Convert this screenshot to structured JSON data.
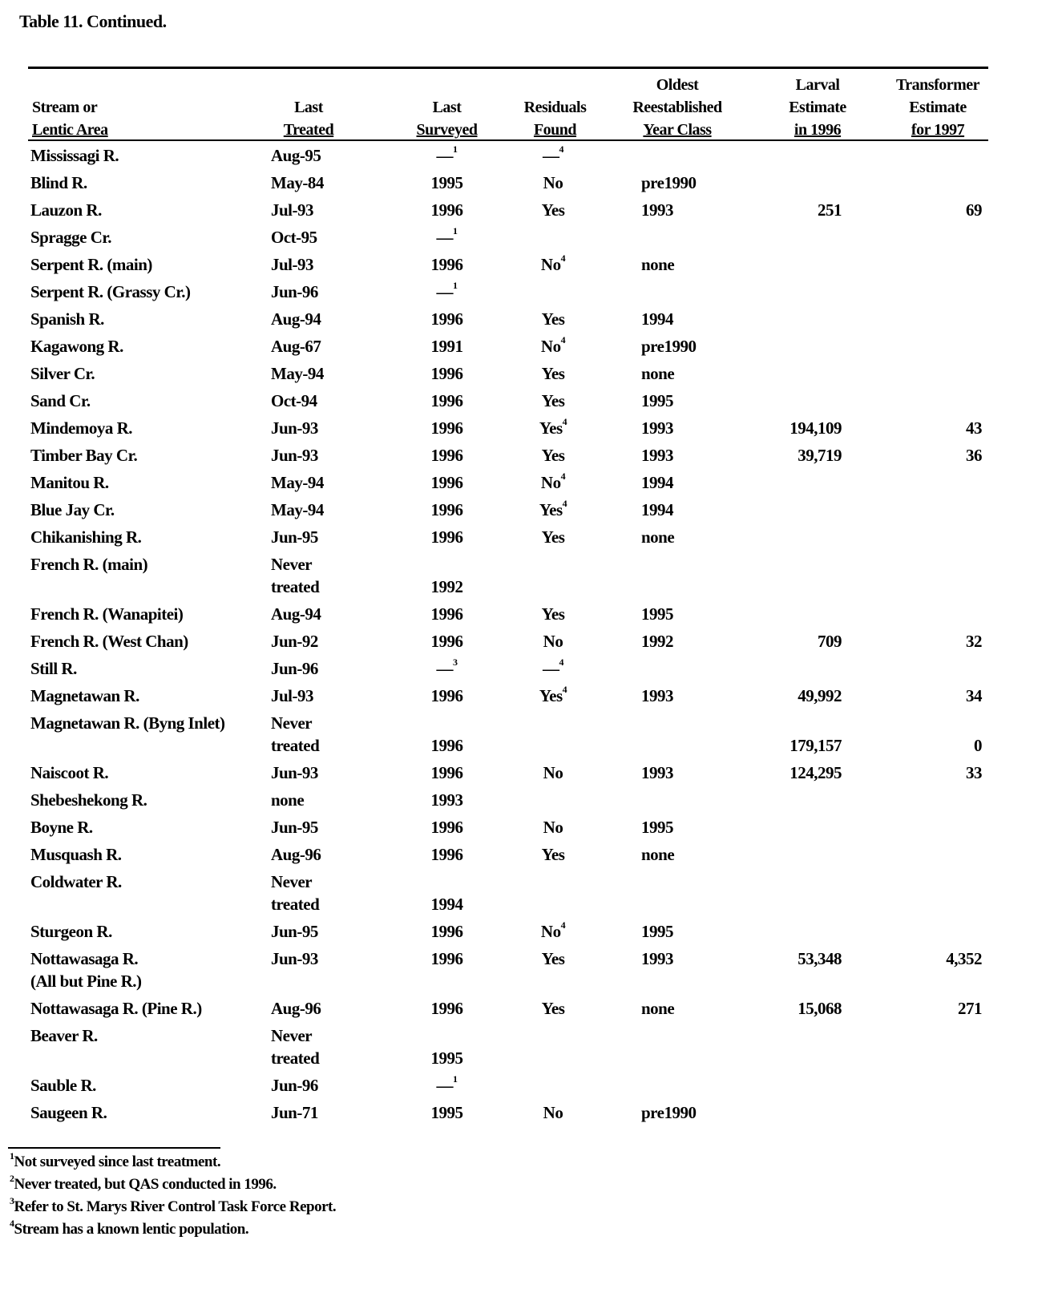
{
  "title": "Table 11.  Continued.",
  "headers": [
    [
      "Stream or",
      "Lentic Area"
    ],
    [
      "Last",
      "Treated"
    ],
    [
      "Last",
      "Surveyed"
    ],
    [
      "Residuals",
      "Found"
    ],
    [
      "Oldest",
      "Reestablished",
      "Year Class"
    ],
    [
      "Larval",
      "Estimate",
      "in 1996"
    ],
    [
      "Transformer",
      "Estimate",
      "for 1997"
    ]
  ],
  "rows": [
    {
      "stream": [
        "Mississagi R."
      ],
      "treated": [
        "Aug-95"
      ],
      "surveyed": [
        "—",
        "1"
      ],
      "residuals": [
        "—",
        "4"
      ],
      "oldest": "",
      "larval": "",
      "transformer": ""
    },
    {
      "stream": [
        "Blind R."
      ],
      "treated": [
        "May-84"
      ],
      "surveyed": [
        "1995"
      ],
      "residuals": [
        "No"
      ],
      "oldest": "pre1990",
      "larval": "",
      "transformer": ""
    },
    {
      "stream": [
        "Lauzon R."
      ],
      "treated": [
        "Jul-93"
      ],
      "surveyed": [
        "1996"
      ],
      "residuals": [
        "Yes"
      ],
      "oldest": "1993",
      "larval": "251",
      "transformer": "69"
    },
    {
      "stream": [
        "Spragge Cr."
      ],
      "treated": [
        "Oct-95"
      ],
      "surveyed": [
        "—",
        "1"
      ],
      "residuals": [
        ""
      ],
      "oldest": "",
      "larval": "",
      "transformer": ""
    },
    {
      "stream": [
        "Serpent R. (main)"
      ],
      "treated": [
        "Jul-93"
      ],
      "surveyed": [
        "1996"
      ],
      "residuals": [
        "No",
        "4"
      ],
      "oldest": "none",
      "larval": "",
      "transformer": ""
    },
    {
      "stream": [
        "Serpent R. (Grassy Cr.)"
      ],
      "treated": [
        "Jun-96"
      ],
      "surveyed": [
        "—",
        "1"
      ],
      "residuals": [
        ""
      ],
      "oldest": "",
      "larval": "",
      "transformer": ""
    },
    {
      "stream": [
        "Spanish R."
      ],
      "treated": [
        "Aug-94"
      ],
      "surveyed": [
        "1996"
      ],
      "residuals": [
        "Yes"
      ],
      "oldest": "1994",
      "larval": "",
      "transformer": ""
    },
    {
      "stream": [
        "Kagawong R."
      ],
      "treated": [
        "Aug-67"
      ],
      "surveyed": [
        "1991"
      ],
      "residuals": [
        "No",
        "4"
      ],
      "oldest": "pre1990",
      "larval": "",
      "transformer": ""
    },
    {
      "stream": [
        "Silver Cr."
      ],
      "treated": [
        "May-94"
      ],
      "surveyed": [
        "1996"
      ],
      "residuals": [
        "Yes"
      ],
      "oldest": "none",
      "larval": "",
      "transformer": ""
    },
    {
      "stream": [
        "Sand Cr."
      ],
      "treated": [
        "Oct-94"
      ],
      "surveyed": [
        "1996"
      ],
      "residuals": [
        "Yes"
      ],
      "oldest": "1995",
      "larval": "",
      "transformer": ""
    },
    {
      "stream": [
        "Mindemoya R."
      ],
      "treated": [
        "Jun-93"
      ],
      "surveyed": [
        "1996"
      ],
      "residuals": [
        "Yes",
        "4"
      ],
      "oldest": "1993",
      "larval": "194,109",
      "transformer": "43"
    },
    {
      "stream": [
        "Timber Bay Cr."
      ],
      "treated": [
        "Jun-93"
      ],
      "surveyed": [
        "1996"
      ],
      "residuals": [
        "Yes"
      ],
      "oldest": "1993",
      "larval": "39,719",
      "transformer": "36"
    },
    {
      "stream": [
        "Manitou R."
      ],
      "treated": [
        "May-94"
      ],
      "surveyed": [
        "1996"
      ],
      "residuals": [
        "No",
        "4"
      ],
      "oldest": "1994",
      "larval": "",
      "transformer": ""
    },
    {
      "stream": [
        "Blue Jay Cr."
      ],
      "treated": [
        "May-94"
      ],
      "surveyed": [
        "1996"
      ],
      "residuals": [
        "Yes",
        "4"
      ],
      "oldest": "1994",
      "larval": "",
      "transformer": ""
    },
    {
      "stream": [
        "Chikanishing R."
      ],
      "treated": [
        "Jun-95"
      ],
      "surveyed": [
        "1996"
      ],
      "residuals": [
        "Yes"
      ],
      "oldest": "none",
      "larval": "",
      "transformer": ""
    },
    {
      "stream": [
        "French R. (main)"
      ],
      "treated": [
        "Never",
        "treated"
      ],
      "surveyed": [
        "1992"
      ],
      "residuals": [
        ""
      ],
      "oldest": "",
      "larval": "",
      "transformer": ""
    },
    {
      "stream": [
        "French R. (Wanapitei)"
      ],
      "treated": [
        "Aug-94"
      ],
      "surveyed": [
        "1996"
      ],
      "residuals": [
        "Yes"
      ],
      "oldest": "1995",
      "larval": "",
      "transformer": ""
    },
    {
      "stream": [
        "French R. (West Chan)"
      ],
      "treated": [
        "Jun-92"
      ],
      "surveyed": [
        "1996"
      ],
      "residuals": [
        "No"
      ],
      "oldest": "1992",
      "larval": "709",
      "transformer": "32"
    },
    {
      "stream": [
        "Still R."
      ],
      "treated": [
        "Jun-96"
      ],
      "surveyed": [
        "—",
        "3"
      ],
      "residuals": [
        "—",
        "4"
      ],
      "oldest": "",
      "larval": "",
      "transformer": ""
    },
    {
      "stream": [
        "Magnetawan R."
      ],
      "treated": [
        "Jul-93"
      ],
      "surveyed": [
        "1996"
      ],
      "residuals": [
        "Yes",
        "4"
      ],
      "oldest": "1993",
      "larval": "49,992",
      "transformer": "34"
    },
    {
      "stream": [
        "Magnetawan R. (Byng Inlet)"
      ],
      "treated": [
        "Never",
        "treated"
      ],
      "surveyed": [
        "1996"
      ],
      "residuals": [
        ""
      ],
      "oldest": "",
      "larval": "179,157",
      "transformer": "0"
    },
    {
      "stream": [
        "Naiscoot R."
      ],
      "treated": [
        "Jun-93"
      ],
      "surveyed": [
        "1996"
      ],
      "residuals": [
        "No"
      ],
      "oldest": "1993",
      "larval": "124,295",
      "transformer": "33"
    },
    {
      "stream": [
        "Shebeshekong R."
      ],
      "treated": [
        "none"
      ],
      "surveyed": [
        "1993"
      ],
      "residuals": [
        ""
      ],
      "oldest": "",
      "larval": "",
      "transformer": ""
    },
    {
      "stream": [
        "Boyne R."
      ],
      "treated": [
        "Jun-95"
      ],
      "surveyed": [
        "1996"
      ],
      "residuals": [
        "No"
      ],
      "oldest": "1995",
      "larval": "",
      "transformer": ""
    },
    {
      "stream": [
        "Musquash R."
      ],
      "treated": [
        "Aug-96"
      ],
      "surveyed": [
        "1996"
      ],
      "residuals": [
        "Yes"
      ],
      "oldest": "none",
      "larval": "",
      "transformer": ""
    },
    {
      "stream": [
        "Coldwater R."
      ],
      "treated": [
        "Never",
        "treated"
      ],
      "surveyed": [
        "1994"
      ],
      "residuals": [
        ""
      ],
      "oldest": "",
      "larval": "",
      "transformer": ""
    },
    {
      "stream": [
        "Sturgeon R."
      ],
      "treated": [
        "Jun-95"
      ],
      "surveyed": [
        "1996"
      ],
      "residuals": [
        "No",
        "4"
      ],
      "oldest": "1995",
      "larval": "",
      "transformer": ""
    },
    {
      "stream": [
        "Nottawasaga R.",
        "(All but Pine R.)"
      ],
      "treated": [
        "Jun-93"
      ],
      "surveyed": [
        "1996"
      ],
      "residuals": [
        "Yes"
      ],
      "oldest": "1993",
      "larval": "53,348",
      "transformer": "4,352"
    },
    {
      "stream": [
        "Nottawasaga R. (Pine R.)"
      ],
      "treated": [
        "Aug-96"
      ],
      "surveyed": [
        "1996"
      ],
      "residuals": [
        "Yes"
      ],
      "oldest": "none",
      "larval": "15,068",
      "transformer": "271"
    },
    {
      "stream": [
        "Beaver R."
      ],
      "treated": [
        "Never",
        "treated"
      ],
      "surveyed": [
        "1995"
      ],
      "residuals": [
        ""
      ],
      "oldest": "",
      "larval": "",
      "transformer": ""
    },
    {
      "stream": [
        "Sauble R."
      ],
      "treated": [
        "Jun-96"
      ],
      "surveyed": [
        "—",
        "1"
      ],
      "residuals": [
        ""
      ],
      "oldest": "",
      "larval": "",
      "transformer": ""
    },
    {
      "stream": [
        "Saugeen R."
      ],
      "treated": [
        "Jun-71"
      ],
      "surveyed": [
        "1995"
      ],
      "residuals": [
        "No"
      ],
      "oldest": "pre1990",
      "larval": "",
      "transformer": ""
    }
  ],
  "footnotes": [
    {
      "mark": "1",
      "text": "Not surveyed since last treatment."
    },
    {
      "mark": "2",
      "text": "Never treated, but QAS conducted in 1996."
    },
    {
      "mark": "3",
      "text": "Refer to St. Marys River Control Task Force Report."
    },
    {
      "mark": "4",
      "text": "Stream has a known lentic population."
    }
  ]
}
